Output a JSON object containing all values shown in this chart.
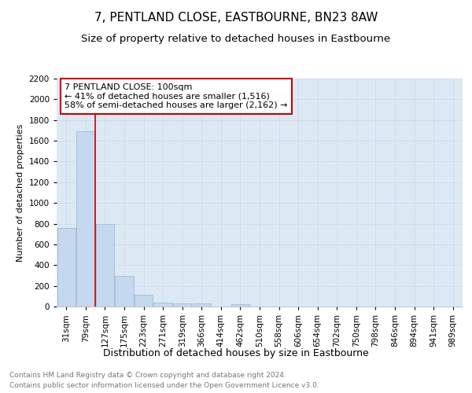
{
  "title": "7, PENTLAND CLOSE, EASTBOURNE, BN23 8AW",
  "subtitle": "Size of property relative to detached houses in Eastbourne",
  "xlabel": "Distribution of detached houses by size in Eastbourne",
  "ylabel": "Number of detached properties",
  "categories": [
    "31sqm",
    "79sqm",
    "127sqm",
    "175sqm",
    "223sqm",
    "271sqm",
    "319sqm",
    "366sqm",
    "414sqm",
    "462sqm",
    "510sqm",
    "558sqm",
    "606sqm",
    "654sqm",
    "702sqm",
    "750sqm",
    "798sqm",
    "846sqm",
    "894sqm",
    "941sqm",
    "989sqm"
  ],
  "values": [
    760,
    1690,
    800,
    295,
    115,
    40,
    30,
    30,
    0,
    20,
    0,
    0,
    0,
    0,
    0,
    0,
    0,
    0,
    0,
    0,
    0
  ],
  "bar_color": "#c5d8ef",
  "bar_edge_color": "#9bbcd8",
  "vline_color": "#cc0000",
  "annotation_title": "7 PENTLAND CLOSE: 100sqm",
  "annotation_line1": "← 41% of detached houses are smaller (1,516)",
  "annotation_line2": "58% of semi-detached houses are larger (2,162) →",
  "annotation_box_color": "#cc0000",
  "ylim": [
    0,
    2200
  ],
  "yticks": [
    0,
    200,
    400,
    600,
    800,
    1000,
    1200,
    1400,
    1600,
    1800,
    2000,
    2200
  ],
  "grid_color": "#c8d8e8",
  "bg_color": "#dce9f5",
  "footer1": "Contains HM Land Registry data © Crown copyright and database right 2024.",
  "footer2": "Contains public sector information licensed under the Open Government Licence v3.0.",
  "title_fontsize": 11,
  "subtitle_fontsize": 9.5,
  "xlabel_fontsize": 9,
  "ylabel_fontsize": 8,
  "tick_fontsize": 7.5,
  "annot_title_fontsize": 8.5,
  "annot_body_fontsize": 8,
  "footer_fontsize": 6.5
}
